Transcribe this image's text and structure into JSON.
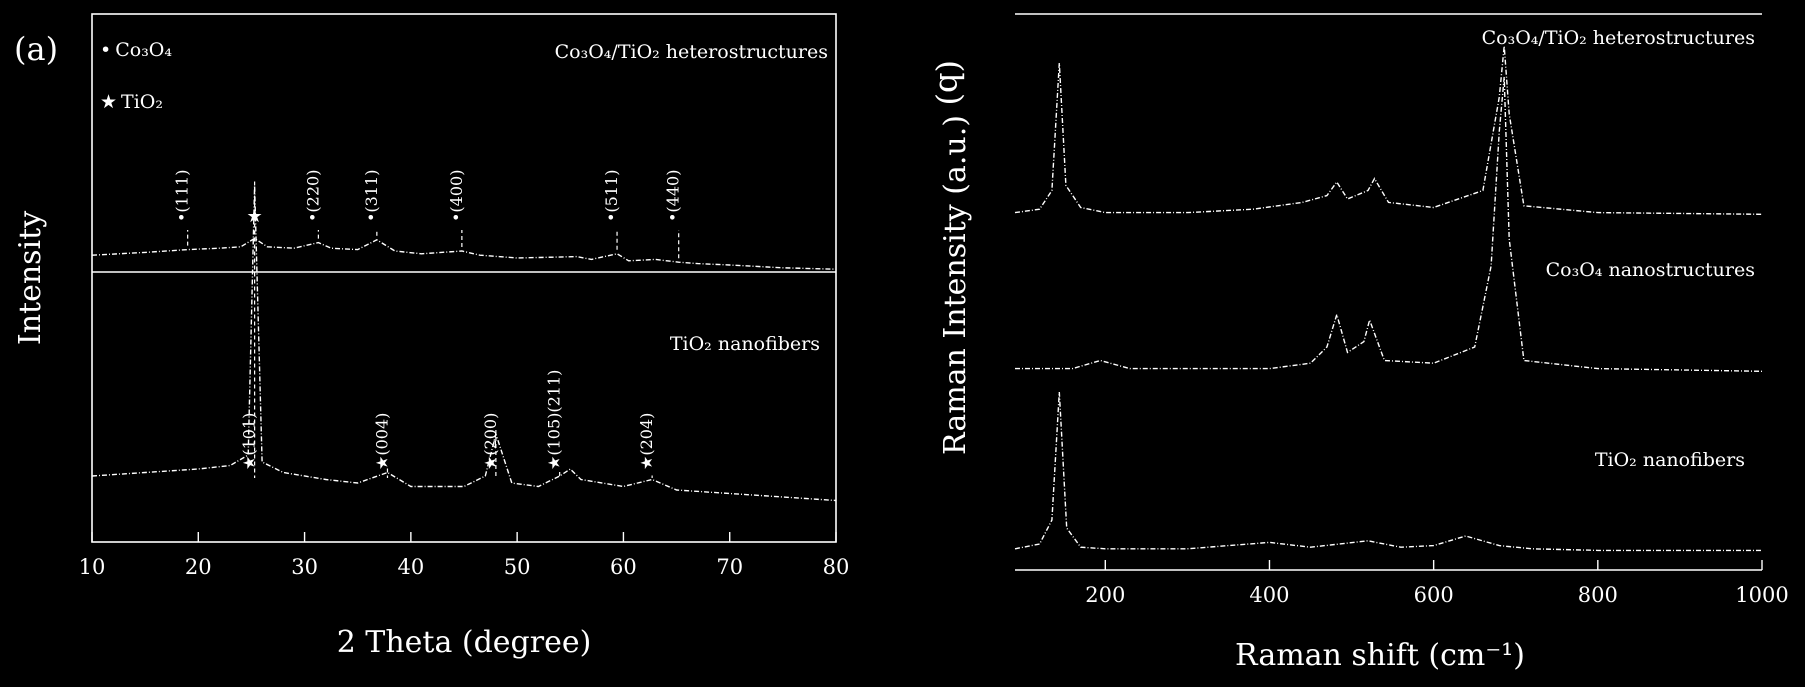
{
  "chart_data": [
    {
      "panel": "(a)",
      "type": "line",
      "xlabel": "2 Theta (degree)",
      "ylabel": "Intensity",
      "xlim": [
        10,
        80
      ],
      "xticks": [
        10,
        20,
        30,
        40,
        50,
        60,
        70,
        80
      ],
      "legend": [
        {
          "symbol": "•",
          "label": "Co₃O₄"
        },
        {
          "symbol": "★",
          "label": "TiO₂"
        }
      ],
      "series": [
        {
          "name": "Co₃O₄/TiO₂ heterostructures",
          "x": [
            10,
            15,
            19,
            22,
            24,
            25.3,
            26.5,
            29,
            31.3,
            32.5,
            35,
            36.8,
            38.5,
            41,
            44.8,
            46.5,
            50,
            55.6,
            57,
            59.4,
            60.5,
            63,
            65.2,
            67,
            70,
            75,
            80
          ],
          "y": [
            0.32,
            0.34,
            0.36,
            0.37,
            0.38,
            0.44,
            0.38,
            0.37,
            0.41,
            0.37,
            0.36,
            0.43,
            0.35,
            0.33,
            0.35,
            0.32,
            0.3,
            0.31,
            0.29,
            0.33,
            0.28,
            0.29,
            0.27,
            0.26,
            0.25,
            0.23,
            0.22
          ]
        },
        {
          "name": "TiO₂ nanofibers",
          "x": [
            10,
            15,
            20,
            23,
            24.7,
            25.3,
            26,
            28,
            32,
            35,
            37.8,
            40,
            45,
            47,
            48,
            49.5,
            52,
            54,
            55,
            56,
            60,
            62.7,
            65,
            70,
            75,
            80
          ],
          "y": [
            0.12,
            0.13,
            0.14,
            0.15,
            0.18,
            0.95,
            0.16,
            0.13,
            0.11,
            0.1,
            0.13,
            0.09,
            0.09,
            0.12,
            0.24,
            0.1,
            0.09,
            0.12,
            0.14,
            0.11,
            0.09,
            0.11,
            0.08,
            0.07,
            0.06,
            0.05
          ]
        }
      ],
      "annotations": [
        {
          "series": "Co₃O₄/TiO₂ heterostructures",
          "x": 19,
          "label": "•(111)"
        },
        {
          "series": "Co₃O₄/TiO₂ heterostructures",
          "x": 25.3,
          "label": "★"
        },
        {
          "series": "Co₃O₄/TiO₂ heterostructures",
          "x": 31.3,
          "label": "•(220)"
        },
        {
          "series": "Co₃O₄/TiO₂ heterostructures",
          "x": 36.8,
          "label": "•(311)"
        },
        {
          "series": "Co₃O₄/TiO₂ heterostructures",
          "x": 44.8,
          "label": "•(400)"
        },
        {
          "series": "Co₃O₄/TiO₂ heterostructures",
          "x": 59.4,
          "label": "•(511)"
        },
        {
          "series": "Co₃O₄/TiO₂ heterostructures",
          "x": 65.2,
          "label": "•(440)"
        },
        {
          "series": "TiO₂ nanofibers",
          "x": 25.3,
          "label": "★(101)"
        },
        {
          "series": "TiO₂ nanofibers",
          "x": 37.8,
          "label": "★(004)"
        },
        {
          "series": "TiO₂ nanofibers",
          "x": 48,
          "label": "★(200)"
        },
        {
          "series": "TiO₂ nanofibers",
          "x": 54,
          "label": "★(105)(211)"
        },
        {
          "series": "TiO₂ nanofibers",
          "x": 62.7,
          "label": "★(204)"
        }
      ]
    },
    {
      "panel": "(b)",
      "type": "line",
      "xlabel": "Raman shift (cm⁻¹)",
      "ylabel": "Raman Intensity (a.u.)",
      "xlim": [
        90,
        1000
      ],
      "xticks": [
        200,
        400,
        600,
        800,
        1000
      ],
      "series": [
        {
          "name": "Co₃O₄/TiO₂ heterostructures",
          "x": [
            90,
            120,
            135,
            144,
            152,
            170,
            200,
            300,
            380,
            440,
            470,
            482,
            495,
            520,
            528,
            545,
            600,
            660,
            680,
            686,
            692,
            710,
            800,
            1000
          ],
          "y": [
            0.02,
            0.04,
            0.15,
            0.9,
            0.18,
            0.05,
            0.02,
            0.02,
            0.04,
            0.08,
            0.12,
            0.2,
            0.1,
            0.15,
            0.22,
            0.08,
            0.05,
            0.15,
            0.7,
            1.0,
            0.6,
            0.06,
            0.02,
            0.01
          ]
        },
        {
          "name": "Co₃O₄ nanostructures",
          "x": [
            90,
            160,
            194,
            230,
            400,
            450,
            470,
            482,
            495,
            515,
            522,
            540,
            600,
            650,
            670,
            680,
            686,
            692,
            710,
            800,
            1000
          ],
          "y": [
            0.02,
            0.02,
            0.05,
            0.02,
            0.02,
            0.04,
            0.1,
            0.22,
            0.08,
            0.12,
            0.2,
            0.05,
            0.04,
            0.1,
            0.4,
            0.9,
            1.1,
            0.5,
            0.05,
            0.02,
            0.01
          ]
        },
        {
          "name": "TiO₂ nanofibers",
          "x": [
            90,
            120,
            135,
            144,
            153,
            170,
            200,
            300,
            400,
            450,
            520,
            560,
            600,
            639,
            680,
            720,
            800,
            1000
          ],
          "y": [
            0.02,
            0.05,
            0.2,
            1.0,
            0.15,
            0.03,
            0.02,
            0.02,
            0.06,
            0.03,
            0.07,
            0.03,
            0.04,
            0.1,
            0.04,
            0.02,
            0.01,
            0.01
          ]
        }
      ]
    }
  ]
}
